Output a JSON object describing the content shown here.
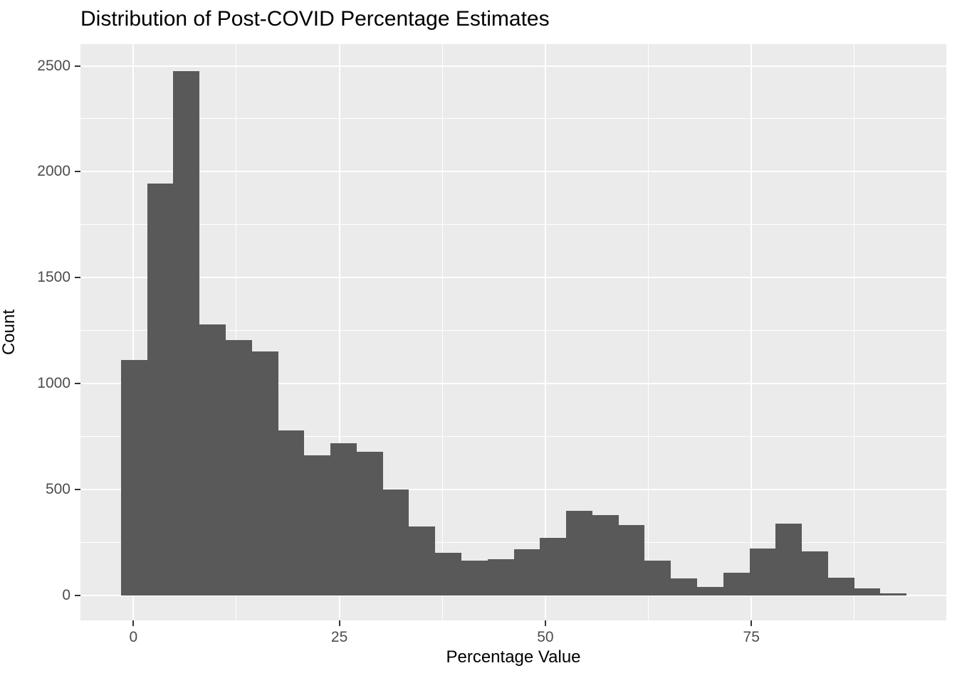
{
  "title": "Distribution of Post-COVID Percentage Estimates",
  "axes": {
    "x_label": "Percentage Value",
    "y_label": "Count"
  },
  "chart_data": {
    "type": "bar",
    "variant": "histogram",
    "title": "Distribution of Post-COVID Percentage Estimates",
    "xlabel": "Percentage Value",
    "ylabel": "Count",
    "bin_start": -1.5,
    "bin_width": 3.178,
    "counts": [
      1110,
      1945,
      2475,
      1280,
      1205,
      1150,
      780,
      660,
      718,
      678,
      500,
      325,
      200,
      163,
      170,
      218,
      272,
      400,
      377,
      331,
      162,
      81,
      40,
      106,
      222,
      338,
      206,
      84,
      33,
      8
    ],
    "x_ticks": [
      0,
      25,
      50,
      75
    ],
    "x_minor_ticks": [
      12.5,
      37.5,
      62.5,
      87.5
    ],
    "y_ticks": [
      0,
      500,
      1000,
      1500,
      2000,
      2500
    ],
    "y_minor_ticks": [
      250,
      750,
      1250,
      1750,
      2250
    ],
    "xlim": [
      -6.42,
      98.66
    ],
    "ylim": [
      -118.6,
      2602.7
    ],
    "grid": "on",
    "legend": "none",
    "colors": {
      "bar_fill": "#595959",
      "panel_background": "#EBEBEB",
      "gridline": "#FFFFFF",
      "tick_label": "#4D4D4D",
      "tick_mark": "#333333",
      "title_text": "#000000",
      "figure_background": "#FFFFFF"
    }
  }
}
